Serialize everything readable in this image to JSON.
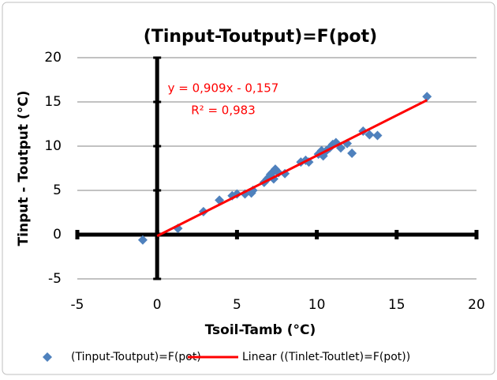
{
  "chart_data": {
    "type": "scatter",
    "title": "(Tinput-Toutput)=F(pot)",
    "x_label": "Tsoil-Tamb (°C)",
    "y_label": "Tinput - Toutput (°C)",
    "annotations": [
      "y = 0,909x - 0,157",
      "R² = 0,983"
    ],
    "annotation_color": "#ff0000",
    "xlim": [
      -5,
      20
    ],
    "ylim": [
      -5,
      20
    ],
    "xticks": [
      -5,
      0,
      5,
      10,
      15,
      20
    ],
    "yticks": [
      -5,
      0,
      5,
      10,
      15,
      20
    ],
    "grid": true,
    "legend": "bottom",
    "series": [
      {
        "name": "(Tinput-Toutput)=F(pot)",
        "color": "#4f81bd",
        "mode": "markers",
        "x": [
          -0.9,
          1.3,
          2.9,
          3.9,
          4.7,
          5.0,
          5.5,
          5.9,
          6.0,
          6.7,
          6.9,
          7.0,
          7.1,
          7.2,
          7.4,
          7.3,
          7.6,
          8.0,
          9.0,
          9.3,
          9.5,
          10.1,
          10.3,
          10.4,
          10.6,
          10.8,
          11.0,
          11.2,
          11.5,
          11.9,
          12.2,
          12.9,
          13.3,
          13.8,
          16.9
        ],
        "values": [
          -0.6,
          0.7,
          2.6,
          3.9,
          4.4,
          4.6,
          4.6,
          4.7,
          5.0,
          5.9,
          6.3,
          6.5,
          6.8,
          7.0,
          7.4,
          6.3,
          7.0,
          6.9,
          8.2,
          8.4,
          8.2,
          9.1,
          9.5,
          8.9,
          9.5,
          9.8,
          10.2,
          10.4,
          9.8,
          10.3,
          9.2,
          11.7,
          11.3,
          11.2,
          15.6
        ]
      },
      {
        "name": "Linear ((Tinlet-Toutlet)=F(pot))",
        "color": "#ff0000",
        "mode": "line",
        "x": [
          0,
          16.9
        ],
        "values": [
          -0.157,
          15.2
        ]
      }
    ]
  }
}
